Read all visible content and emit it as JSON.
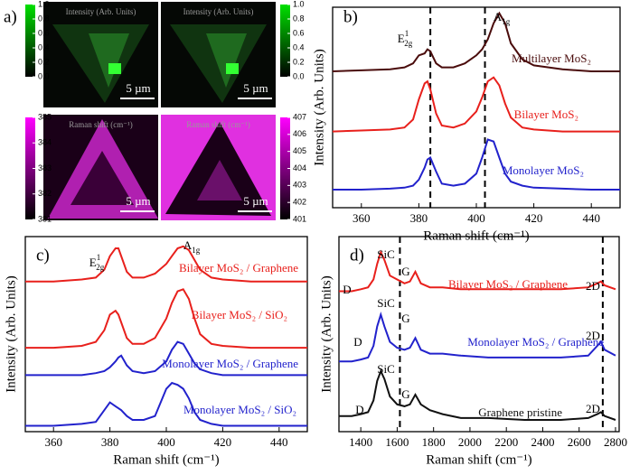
{
  "chart_data": [
    {
      "type": "map",
      "label": "a)",
      "maps": [
        {
          "title": "Intensity (Arb. Units)",
          "scalebar": "5 µm"
        },
        {
          "title": "Intensity (Arb. Units)",
          "scalebar": "5 µm"
        },
        {
          "title": "Raman shift (cm⁻¹)",
          "scalebar": "5 µm"
        },
        {
          "title": "Raman shift (cm⁻¹)",
          "scalebar": "5 µm"
        }
      ],
      "colorbars": [
        {
          "colors": [
            "#000000",
            "#00e000"
          ],
          "lim": [
            0,
            1
          ],
          "ticks": [
            {
              "value": 0,
              "label": "0.0"
            },
            {
              "value": 0.2,
              "label": "0.2"
            },
            {
              "value": 0.4,
              "label": "0.4"
            },
            {
              "value": 0.6,
              "label": "0.6"
            },
            {
              "value": 0.8,
              "label": "0.8"
            },
            {
              "value": 1,
              "label": "1.0"
            }
          ]
        },
        {
          "colors": [
            "#000000",
            "#00e000"
          ],
          "lim": [
            0,
            1
          ],
          "ticks": [
            {
              "value": 0,
              "label": "0.0"
            },
            {
              "value": 0.2,
              "label": "0.2"
            },
            {
              "value": 0.4,
              "label": "0.4"
            },
            {
              "value": 0.6,
              "label": "0.6"
            },
            {
              "value": 0.8,
              "label": "0.8"
            },
            {
              "value": 1,
              "label": "1.0"
            }
          ]
        },
        {
          "colors": [
            "#000000",
            "#ff00ff"
          ],
          "lim": [
            381,
            385
          ],
          "ticks": [
            381,
            382,
            383,
            384,
            385
          ]
        },
        {
          "colors": [
            "#000000",
            "#ff00ff"
          ],
          "lim": [
            401,
            407
          ],
          "ticks": [
            401,
            402,
            403,
            404,
            405,
            406,
            407
          ]
        }
      ]
    },
    {
      "type": "line",
      "label": "b)",
      "xlabel": "Raman shift (cm⁻¹)",
      "ylabel": "Intensity (Arb. Units)",
      "xlim": [
        350,
        450
      ],
      "ylim": [
        0,
        100
      ],
      "xticks": [
        360,
        380,
        400,
        420,
        440
      ],
      "vlines": [
        384,
        403
      ],
      "annotations": [
        {
          "text": "E",
          "sup": "1",
          "sub": "2g"
        },
        {
          "text": "A",
          "sub": "1g"
        }
      ],
      "x": [
        350,
        360,
        370,
        375,
        378,
        380,
        382,
        383,
        384,
        386,
        388,
        392,
        396,
        400,
        402,
        404,
        406,
        408,
        410,
        412,
        416,
        420,
        430,
        440,
        450
      ],
      "series": [
        {
          "name": "Multilayer MoS₂",
          "color": "#4a0c0c",
          "values": [
            68,
            68.5,
            69,
            70,
            72,
            76,
            77,
            79,
            78,
            72,
            70,
            70,
            72,
            76,
            79,
            84,
            92,
            97,
            92,
            82,
            74,
            71,
            69,
            68,
            68
          ]
        },
        {
          "name": "Bilayer MoS₂",
          "color": "#e8201c",
          "values": [
            38,
            38.5,
            39,
            40,
            44,
            54,
            62,
            63,
            59,
            47,
            41,
            40,
            42,
            48,
            55,
            63,
            65,
            61,
            52,
            45,
            40,
            39,
            38,
            38,
            38
          ]
        },
        {
          "name": "Monolayer MoS₂",
          "color": "#2222cc",
          "values": [
            9,
            9,
            9.5,
            10,
            11,
            14,
            20,
            24,
            25,
            18,
            12,
            11,
            12,
            17,
            25,
            34,
            33,
            25,
            17,
            13,
            11,
            10,
            9.5,
            9,
            9
          ]
        }
      ]
    },
    {
      "type": "line",
      "label": "c)",
      "xlabel": "Raman shift (cm⁻¹)",
      "ylabel": "Intensity (Arb. Units)",
      "xlim": [
        350,
        450
      ],
      "ylim": [
        0,
        100
      ],
      "xticks": [
        360,
        380,
        400,
        420,
        440
      ],
      "annotations": [
        {
          "text": "E",
          "sup": "1",
          "sub": "2g"
        },
        {
          "text": "A",
          "sub": "1g"
        }
      ],
      "x": [
        350,
        360,
        370,
        375,
        378,
        380,
        382,
        383,
        384,
        386,
        388,
        392,
        396,
        400,
        402,
        404,
        406,
        408,
        410,
        412,
        416,
        420,
        430,
        440,
        450
      ],
      "series": [
        {
          "name": "Bilayer MoS₂ / Graphene",
          "color": "#e8201c",
          "values": [
            77,
            77,
            78,
            79,
            83,
            90,
            94,
            94,
            90,
            82,
            79,
            79,
            81,
            86,
            90,
            94,
            95,
            93,
            88,
            83,
            79,
            78,
            77,
            77,
            77
          ]
        },
        {
          "name": "Bilayer MoS₂ / SiO₂",
          "color": "#e8201c",
          "values": [
            43,
            43,
            44,
            46,
            52,
            60,
            62,
            60,
            56,
            48,
            45,
            45,
            48,
            58,
            66,
            72,
            73,
            68,
            58,
            50,
            45,
            44,
            43,
            43,
            43
          ]
        },
        {
          "name": "Monolayer MoS₂ / Graphene",
          "color": "#2222cc",
          "values": [
            29,
            29,
            29,
            30,
            31,
            33,
            36,
            38,
            39,
            34,
            31,
            30,
            31,
            36,
            42,
            46,
            45,
            40,
            35,
            32,
            30,
            29,
            29,
            29,
            29
          ]
        },
        {
          "name": "Monolayer MoS₂ / SiO₂",
          "color": "#2222cc",
          "values": [
            3,
            3,
            4,
            5,
            11,
            15,
            13,
            12,
            11,
            8,
            6,
            6,
            8,
            22,
            25,
            24,
            22,
            17,
            10,
            6,
            4,
            3,
            3,
            3,
            3
          ]
        }
      ]
    },
    {
      "type": "line",
      "label": "d)",
      "xlabel": "Raman shift (cm⁻¹)",
      "ylabel": "Intensity (Arb. Units)",
      "xlim": [
        1280,
        2820
      ],
      "ylim": [
        0,
        100
      ],
      "xticks": [
        1400,
        1600,
        1800,
        2000,
        2200,
        2400,
        2600,
        2800
      ],
      "vlines": [
        1615,
        2730
      ],
      "annotations": [
        {
          "text": "SiC"
        },
        {
          "text": "G"
        },
        {
          "text": "D"
        },
        {
          "text": "2D"
        },
        {
          "text": "SiC"
        },
        {
          "text": "G"
        },
        {
          "text": "D"
        },
        {
          "text": "2D"
        },
        {
          "text": "SiC"
        },
        {
          "text": "G"
        },
        {
          "text": "D"
        },
        {
          "text": "2D"
        }
      ],
      "x": [
        1280,
        1350,
        1400,
        1440,
        1470,
        1490,
        1510,
        1530,
        1560,
        1600,
        1640,
        1670,
        1700,
        1730,
        1780,
        1850,
        1950,
        2100,
        2300,
        2500,
        2650,
        2700,
        2720,
        2740,
        2800
      ],
      "series": [
        {
          "name": "Bilayer MoS₂ / Graphene",
          "color": "#e8201c",
          "values": [
            72,
            72,
            73,
            74,
            78,
            86,
            92,
            88,
            80,
            78,
            76,
            77,
            82,
            76,
            74,
            74,
            73,
            73,
            73,
            73,
            74,
            76,
            77,
            75,
            73
          ]
        },
        {
          "name": "Monolayer MoS₂ / Graphene",
          "color": "#2222cc",
          "values": [
            36,
            36,
            37,
            38,
            44,
            54,
            60,
            54,
            46,
            43,
            42,
            43,
            48,
            42,
            40,
            40,
            39,
            38,
            38,
            38,
            39,
            44,
            46,
            42,
            39
          ]
        },
        {
          "name": "Graphene pristine",
          "color": "#111111",
          "values": [
            8,
            8,
            9,
            10,
            16,
            26,
            31,
            27,
            18,
            14,
            13,
            14,
            19,
            14,
            11,
            9,
            7,
            7,
            6,
            6,
            7,
            9,
            10,
            8,
            6
          ]
        }
      ]
    }
  ]
}
